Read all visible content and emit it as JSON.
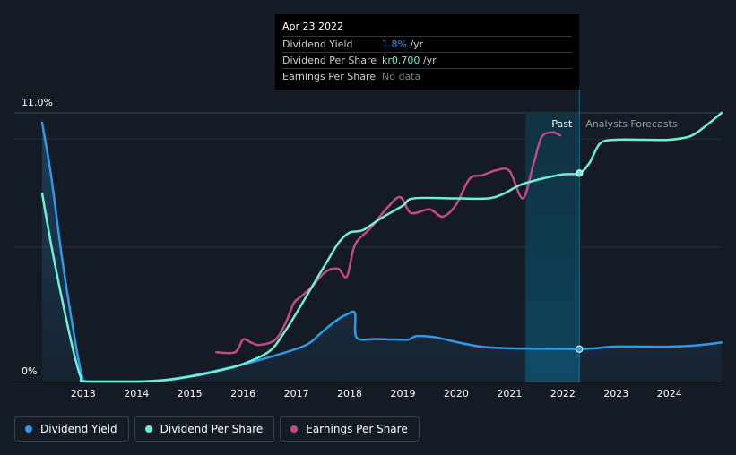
{
  "tooltip": {
    "date": "Apr 23 2022",
    "rows": [
      {
        "label": "Dividend Yield",
        "value": "1.8%",
        "unit": " /yr",
        "color": "#2f9ae8"
      },
      {
        "label": "Dividend Per Share",
        "value": "kr0.700",
        "unit": " /yr",
        "color": "#6ff0d6"
      },
      {
        "label": "Earnings Per Share",
        "value": "No data",
        "unit": "",
        "color": "#7b7f86"
      }
    ]
  },
  "regions": {
    "past": "Past",
    "forecast": "Analysts Forecasts"
  },
  "legend": [
    {
      "label": "Dividend Yield",
      "color": "#2f9ae8"
    },
    {
      "label": "Dividend Per Share",
      "color": "#6ff0d6"
    },
    {
      "label": "Earnings Per Share",
      "color": "#c2498c"
    }
  ],
  "chart_data": {
    "type": "line",
    "y_axis": {
      "top_label": "11.0%",
      "bottom_label": "0%",
      "ylim": [
        0,
        11.0
      ]
    },
    "x_axis": {
      "range": [
        2012.23,
        2024.98
      ],
      "ticks": [
        "2013",
        "2014",
        "2015",
        "2016",
        "2017",
        "2018",
        "2019",
        "2020",
        "2021",
        "2022",
        "2023",
        "2024"
      ]
    },
    "highlight": {
      "from": 2021.3,
      "to": 2022.31
    },
    "series": [
      {
        "name": "Dividend Yield",
        "color": "#2f9ae8",
        "area": true,
        "points": [
          [
            2012.23,
            10.6
          ],
          [
            2012.4,
            8.4
          ],
          [
            2012.6,
            5.1
          ],
          [
            2012.8,
            2.3
          ],
          [
            2012.97,
            0.3
          ],
          [
            2013.1,
            0
          ],
          [
            2014.0,
            0
          ],
          [
            2014.5,
            0.06
          ],
          [
            2015.0,
            0.22
          ],
          [
            2015.5,
            0.45
          ],
          [
            2016.0,
            0.7
          ],
          [
            2016.5,
            1.0
          ],
          [
            2017.0,
            1.34
          ],
          [
            2017.25,
            1.58
          ],
          [
            2017.5,
            2.06
          ],
          [
            2017.75,
            2.5
          ],
          [
            2017.95,
            2.75
          ],
          [
            2018.1,
            2.8
          ],
          [
            2018.13,
            1.8
          ],
          [
            2018.5,
            1.74
          ],
          [
            2018.9,
            1.72
          ],
          [
            2019.1,
            1.72
          ],
          [
            2019.25,
            1.86
          ],
          [
            2019.5,
            1.84
          ],
          [
            2019.75,
            1.75
          ],
          [
            2020.0,
            1.62
          ],
          [
            2020.5,
            1.42
          ],
          [
            2021.0,
            1.36
          ],
          [
            2021.5,
            1.35
          ],
          [
            2022.0,
            1.34
          ],
          [
            2022.31,
            1.33
          ],
          [
            2022.6,
            1.36
          ],
          [
            2022.95,
            1.43
          ],
          [
            2023.5,
            1.43
          ],
          [
            2024.0,
            1.43
          ],
          [
            2024.5,
            1.48
          ],
          [
            2024.98,
            1.6
          ]
        ]
      },
      {
        "name": "Dividend Per Share",
        "color": "#6ff0d6",
        "points": [
          [
            2012.23,
            7.7
          ],
          [
            2012.4,
            5.6
          ],
          [
            2012.6,
            3.4
          ],
          [
            2012.8,
            1.4
          ],
          [
            2012.95,
            0.2
          ],
          [
            2013.05,
            0
          ],
          [
            2014.0,
            0
          ],
          [
            2014.5,
            0.05
          ],
          [
            2015.0,
            0.2
          ],
          [
            2015.5,
            0.42
          ],
          [
            2016.0,
            0.72
          ],
          [
            2016.5,
            1.25
          ],
          [
            2016.8,
            2.1
          ],
          [
            2017.0,
            2.8
          ],
          [
            2017.3,
            3.9
          ],
          [
            2017.6,
            5.0
          ],
          [
            2017.8,
            5.7
          ],
          [
            2018.0,
            6.1
          ],
          [
            2018.25,
            6.2
          ],
          [
            2018.6,
            6.7
          ],
          [
            2019.0,
            7.2
          ],
          [
            2019.2,
            7.5
          ],
          [
            2020.0,
            7.5
          ],
          [
            2020.6,
            7.5
          ],
          [
            2020.9,
            7.7
          ],
          [
            2021.2,
            8.05
          ],
          [
            2021.6,
            8.3
          ],
          [
            2022.0,
            8.48
          ],
          [
            2022.31,
            8.53
          ],
          [
            2022.5,
            8.95
          ],
          [
            2022.7,
            9.75
          ],
          [
            2023.0,
            9.9
          ],
          [
            2023.5,
            9.9
          ],
          [
            2024.0,
            9.9
          ],
          [
            2024.4,
            10.05
          ],
          [
            2024.7,
            10.5
          ],
          [
            2024.98,
            11.0
          ]
        ]
      },
      {
        "name": "Earnings Per Share",
        "color": "#c2498c",
        "points": [
          [
            2015.5,
            1.2
          ],
          [
            2015.85,
            1.2
          ],
          [
            2016.0,
            1.72
          ],
          [
            2016.15,
            1.6
          ],
          [
            2016.3,
            1.5
          ],
          [
            2016.6,
            1.7
          ],
          [
            2016.8,
            2.4
          ],
          [
            2016.95,
            3.2
          ],
          [
            2017.1,
            3.5
          ],
          [
            2017.3,
            3.9
          ],
          [
            2017.5,
            4.4
          ],
          [
            2017.65,
            4.6
          ],
          [
            2017.8,
            4.6
          ],
          [
            2017.95,
            4.3
          ],
          [
            2018.1,
            5.6
          ],
          [
            2018.4,
            6.3
          ],
          [
            2018.7,
            7.1
          ],
          [
            2018.95,
            7.55
          ],
          [
            2019.15,
            6.9
          ],
          [
            2019.5,
            7.05
          ],
          [
            2019.75,
            6.75
          ],
          [
            2020.0,
            7.25
          ],
          [
            2020.25,
            8.3
          ],
          [
            2020.5,
            8.45
          ],
          [
            2020.75,
            8.65
          ],
          [
            2021.0,
            8.62
          ],
          [
            2021.25,
            7.5
          ],
          [
            2021.45,
            8.9
          ],
          [
            2021.6,
            10.0
          ],
          [
            2021.8,
            10.2
          ],
          [
            2021.95,
            10.08
          ]
        ]
      }
    ],
    "markers": [
      {
        "series": "Dividend Per Share",
        "x": 2022.31,
        "y": 8.53
      },
      {
        "series": "Dividend Yield",
        "x": 2022.31,
        "y": 1.33
      }
    ]
  }
}
